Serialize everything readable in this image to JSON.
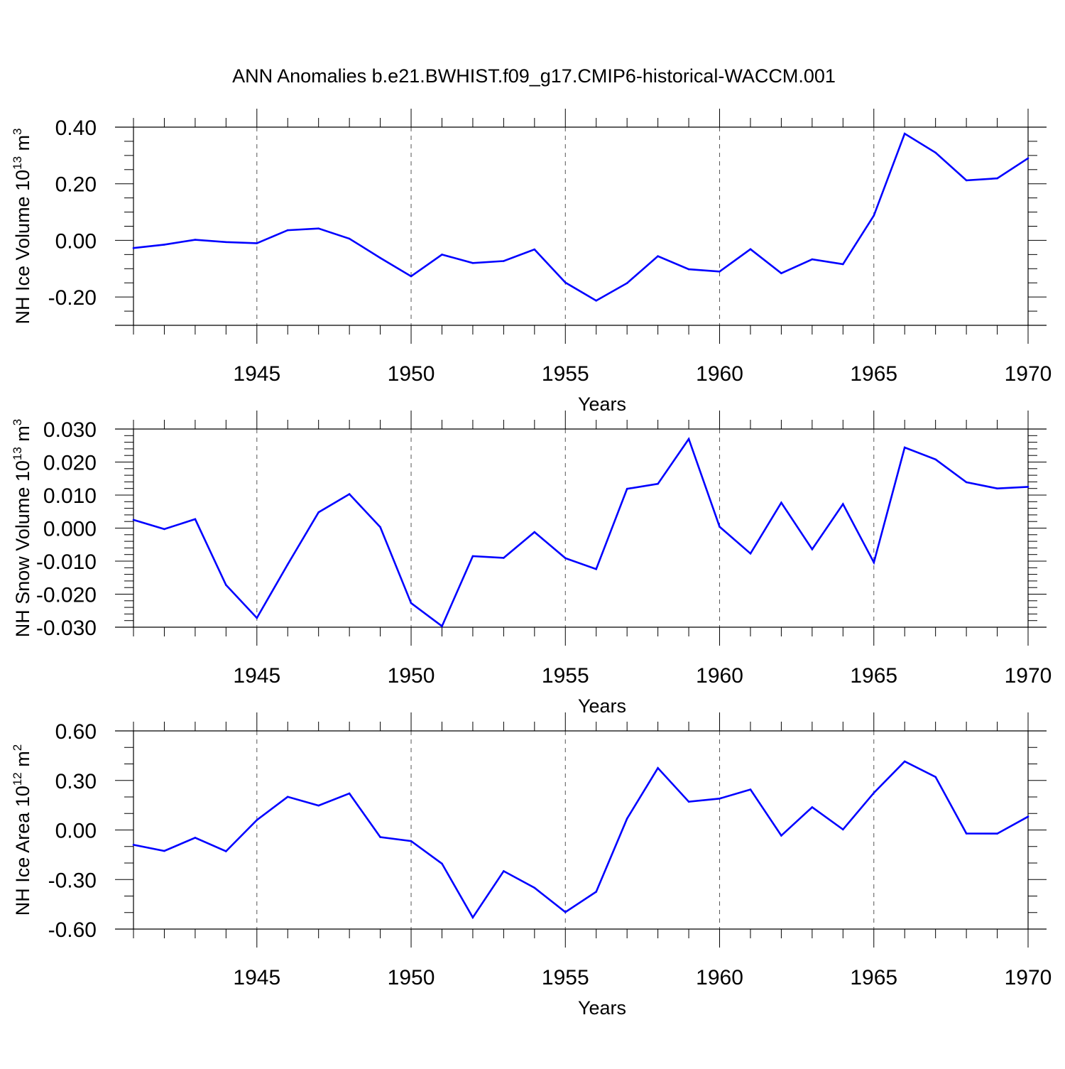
{
  "title": "ANN Anomalies b.e21.BWHIST.f09_g17.CMIP6-historical-WACCM.001",
  "colors": {
    "line": "#0000ff",
    "axis": "#000000",
    "grid": "#555555",
    "background": "#ffffff"
  },
  "chart_data": [
    {
      "type": "line",
      "name": "ice-volume",
      "ylabel_main": "NH Ice Volume 10",
      "ylabel_exp": "13",
      "ylabel_unit": " m",
      "ylabel_unit_exp": "3",
      "xlabel": "Years",
      "xlim": [
        1941,
        1970
      ],
      "ylim": [
        -0.3,
        0.4
      ],
      "yticks": [
        -0.2,
        0.0,
        0.2,
        0.4
      ],
      "yticklabels": [
        "-0.20",
        "0.00",
        "0.20",
        "0.40"
      ],
      "yminor": 0.05,
      "xticks": [
        1945,
        1950,
        1955,
        1960,
        1965,
        1970
      ],
      "xticklabels": [
        "1945",
        "1950",
        "1955",
        "1960",
        "1965",
        "1970"
      ],
      "grid_x": [
        1945,
        1950,
        1955,
        1960,
        1965
      ],
      "x": [
        1941,
        1942,
        1943,
        1944,
        1945,
        1946,
        1947,
        1948,
        1949,
        1950,
        1951,
        1952,
        1953,
        1954,
        1955,
        1956,
        1957,
        1958,
        1959,
        1960,
        1961,
        1962,
        1963,
        1964,
        1965,
        1966,
        1967,
        1968,
        1969,
        1970
      ],
      "values": [
        -0.027,
        -0.015,
        0.002,
        -0.006,
        -0.01,
        0.036,
        0.042,
        0.006,
        -0.062,
        -0.127,
        -0.05,
        -0.08,
        -0.073,
        -0.032,
        -0.149,
        -0.213,
        -0.151,
        -0.056,
        -0.102,
        -0.11,
        -0.031,
        -0.116,
        -0.067,
        -0.084,
        0.088,
        0.377,
        0.31,
        0.212,
        0.219,
        0.29
      ]
    },
    {
      "type": "line",
      "name": "snow-volume",
      "ylabel_main": "NH Snow Volume 10",
      "ylabel_exp": "13",
      "ylabel_unit": " m",
      "ylabel_unit_exp": "3",
      "xlabel": "Years",
      "xlim": [
        1941,
        1970
      ],
      "ylim": [
        -0.03,
        0.03
      ],
      "yticks": [
        -0.03,
        -0.02,
        -0.01,
        0.0,
        0.01,
        0.02,
        0.03
      ],
      "yticklabels": [
        "-0.030",
        "-0.020",
        "-0.010",
        "0.000",
        "0.010",
        "0.020",
        "0.030"
      ],
      "yminor": 0.002,
      "xticks": [
        1945,
        1950,
        1955,
        1960,
        1965,
        1970
      ],
      "xticklabels": [
        "1945",
        "1950",
        "1955",
        "1960",
        "1965",
        "1970"
      ],
      "grid_x": [
        1945,
        1950,
        1955,
        1960,
        1965
      ],
      "x": [
        1941,
        1942,
        1943,
        1944,
        1945,
        1946,
        1947,
        1948,
        1949,
        1950,
        1951,
        1952,
        1953,
        1954,
        1955,
        1956,
        1957,
        1958,
        1959,
        1960,
        1961,
        1962,
        1963,
        1964,
        1965,
        1966,
        1967,
        1968,
        1969,
        1970
      ],
      "values": [
        0.0025,
        -0.0003,
        0.0027,
        -0.0172,
        -0.0272,
        -0.011,
        0.0048,
        0.0103,
        0.0003,
        -0.0227,
        -0.0297,
        -0.0085,
        -0.009,
        -0.0012,
        -0.0091,
        -0.0124,
        0.0119,
        0.0134,
        0.027,
        0.0004,
        -0.0077,
        0.0077,
        -0.0064,
        0.0073,
        -0.0104,
        0.0244,
        0.0208,
        0.0139,
        0.012,
        0.0125
      ]
    },
    {
      "type": "line",
      "name": "ice-area",
      "ylabel_main": "NH Ice Area 10",
      "ylabel_exp": "12",
      "ylabel_unit": " m",
      "ylabel_unit_exp": "2",
      "xlabel": "Years",
      "xlim": [
        1941,
        1970
      ],
      "ylim": [
        -0.6,
        0.6
      ],
      "yticks": [
        -0.6,
        -0.3,
        0.0,
        0.3,
        0.6
      ],
      "yticklabels": [
        "-0.60",
        "-0.30",
        "0.00",
        "0.30",
        "0.60"
      ],
      "yminor": 0.1,
      "xticks": [
        1945,
        1950,
        1955,
        1960,
        1965,
        1970
      ],
      "xticklabels": [
        "1945",
        "1950",
        "1955",
        "1960",
        "1965",
        "1970"
      ],
      "grid_x": [
        1945,
        1950,
        1955,
        1960,
        1965
      ],
      "x": [
        1941,
        1942,
        1943,
        1944,
        1945,
        1946,
        1947,
        1948,
        1949,
        1950,
        1951,
        1952,
        1953,
        1954,
        1955,
        1956,
        1957,
        1958,
        1959,
        1960,
        1961,
        1962,
        1963,
        1964,
        1965,
        1966,
        1967,
        1968,
        1969,
        1970
      ],
      "values": [
        -0.09,
        -0.127,
        -0.047,
        -0.129,
        0.06,
        0.201,
        0.148,
        0.221,
        -0.043,
        -0.067,
        -0.204,
        -0.53,
        -0.249,
        -0.35,
        -0.497,
        -0.374,
        0.069,
        0.375,
        0.171,
        0.19,
        0.245,
        -0.034,
        0.138,
        0.003,
        0.225,
        0.415,
        0.321,
        -0.021,
        -0.022,
        0.081
      ]
    }
  ]
}
